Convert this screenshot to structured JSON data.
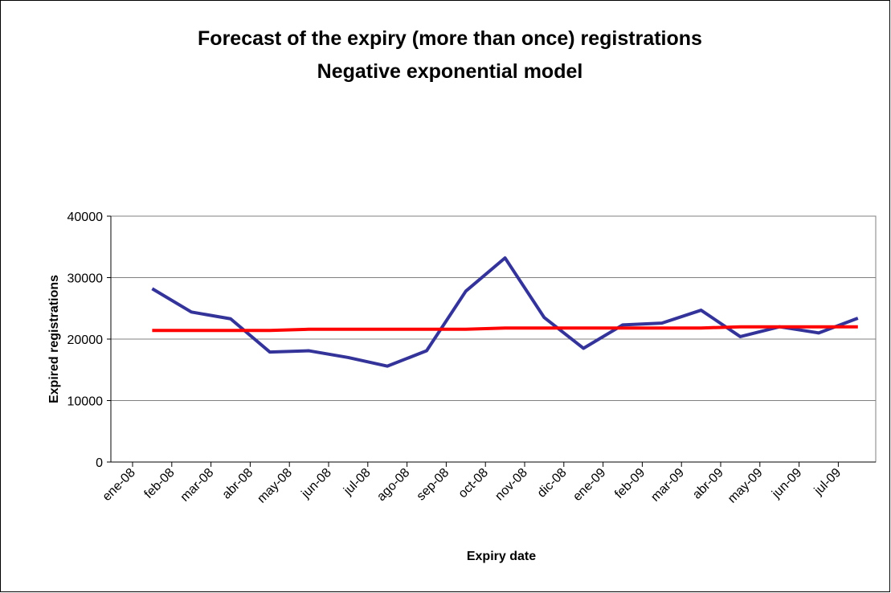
{
  "chart_data": {
    "type": "line",
    "title": "Forecast of the expiry (more than once) registrations",
    "subtitle": "Negative exponential model",
    "x_label": "Expiry date",
    "y_label": "Expired registrations",
    "categories": [
      "ene-08",
      "feb-08",
      "mar-08",
      "abr-08",
      "may-08",
      "jun-08",
      "jul-08",
      "ago-08",
      "sep-08",
      "oct-08",
      "nov-08",
      "dic-08",
      "ene-09",
      "feb-09",
      "mar-09",
      "abr-09",
      "may-09",
      "jun-09",
      "jul-09"
    ],
    "series": [
      {
        "color": "#333399",
        "values": [
          28200,
          24400,
          23300,
          17900,
          18100,
          17000,
          15600,
          18100,
          27800,
          33200,
          23500,
          18500,
          22300,
          22600,
          24700,
          20400,
          22000,
          21000,
          23400
        ]
      },
      {
        "color": "#ff0000",
        "values": [
          21400,
          21400,
          21400,
          21400,
          21600,
          21600,
          21600,
          21600,
          21600,
          21800,
          21800,
          21800,
          21800,
          21800,
          21800,
          22000,
          22000,
          22000,
          22000
        ]
      }
    ],
    "ylim": [
      0,
      40000
    ],
    "yticks": [
      0,
      10000,
      20000,
      30000,
      40000
    ],
    "grid": true
  }
}
